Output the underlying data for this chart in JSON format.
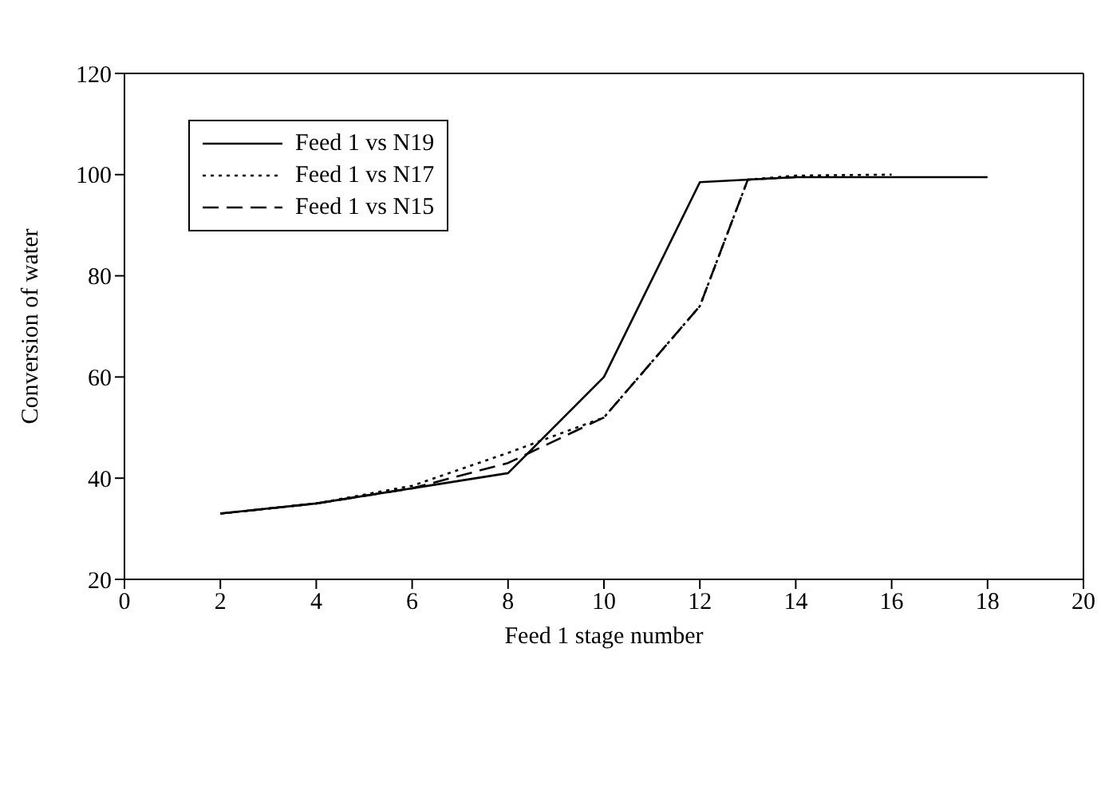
{
  "chart_data": {
    "type": "line",
    "xlabel": "Feed 1 stage number",
    "ylabel": "Conversion of water",
    "xlim": [
      0,
      20
    ],
    "xticks": [
      0,
      2,
      4,
      6,
      8,
      10,
      12,
      14,
      16,
      18,
      20
    ],
    "ylim": [
      20,
      120
    ],
    "yticks": [
      20,
      40,
      60,
      80,
      100,
      120
    ],
    "legend": "top left",
    "marker": "none",
    "series": [
      {
        "name": "Feed 1 vs N19",
        "color": "#000000",
        "line_style": "solid",
        "x": [
          2,
          4,
          6,
          8,
          10,
          12,
          14,
          16,
          18
        ],
        "values": [
          33,
          35,
          38,
          41,
          60,
          98.5,
          99.5,
          99.5,
          99.5
        ]
      },
      {
        "name": "Feed 1 vs N17",
        "color": "#000000",
        "line_style": "dotted",
        "x": [
          2,
          4,
          6,
          8,
          10,
          12,
          13,
          14,
          16
        ],
        "values": [
          33,
          35,
          38.5,
          45,
          52,
          74,
          99,
          99.8,
          100
        ]
      },
      {
        "name": "Feed 1 vs N15",
        "color": "#000000",
        "line_style": "dashed",
        "x": [
          2,
          4,
          6,
          8,
          10,
          12,
          13,
          14
        ],
        "values": [
          33,
          35,
          38,
          43,
          52,
          74,
          99,
          99.5
        ]
      }
    ]
  }
}
